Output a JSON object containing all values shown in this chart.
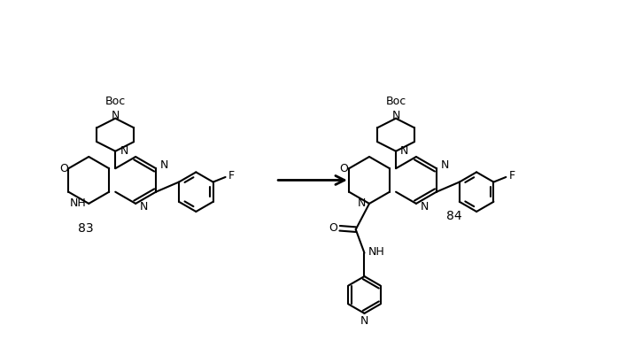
{
  "bg_color": "#ffffff",
  "line_color": "#000000",
  "line_width": 1.5,
  "arrow_color": "#000000",
  "label_83": "83",
  "label_84": "84",
  "boc_label": "Boc",
  "n_label": "N",
  "nh_label": "NH",
  "o_label": "O",
  "f_label": "F",
  "figsize": [
    6.99,
    3.93
  ],
  "dpi": 100
}
